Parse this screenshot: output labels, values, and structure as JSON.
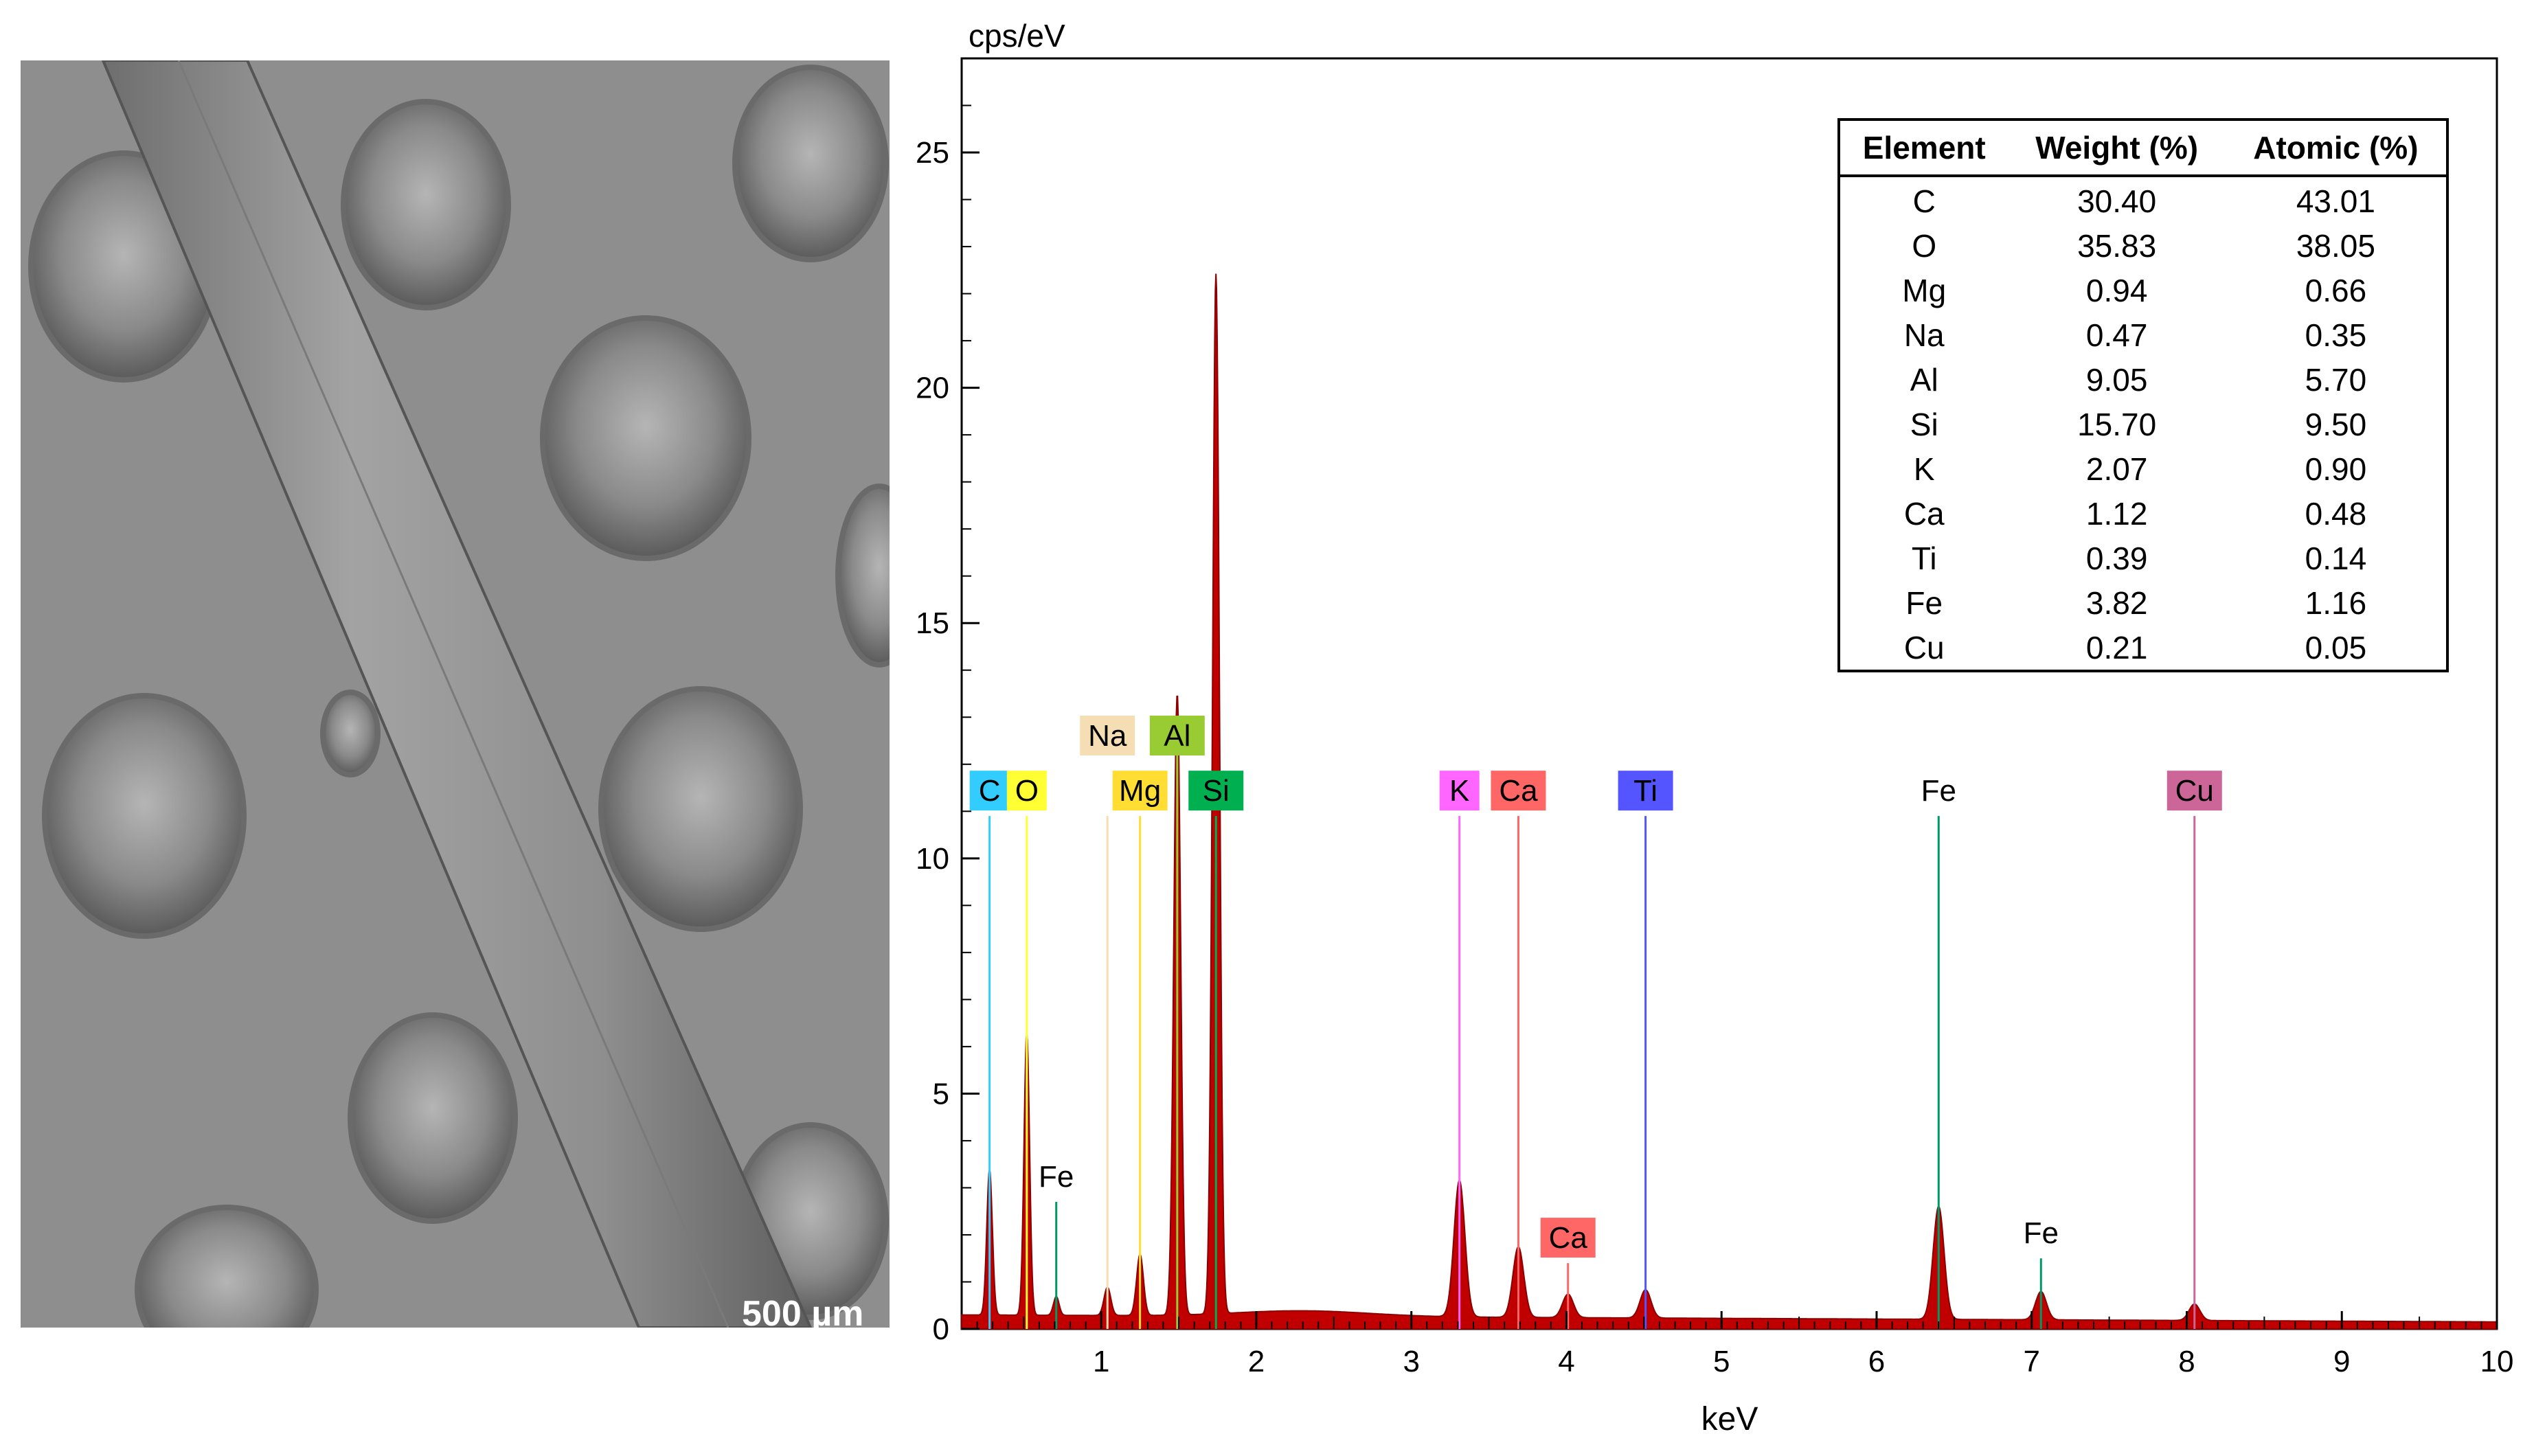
{
  "micrograph": {
    "scale_label": "500 µm"
  },
  "table": {
    "headers": [
      "Element",
      "Weight (%)",
      "Atomic (%)"
    ],
    "rows": [
      [
        "C",
        "30.40",
        "43.01"
      ],
      [
        "O",
        "35.83",
        "38.05"
      ],
      [
        "Mg",
        "0.94",
        "0.66"
      ],
      [
        "Na",
        "0.47",
        "0.35"
      ],
      [
        "Al",
        "9.05",
        "5.70"
      ],
      [
        "Si",
        "15.70",
        "9.50"
      ],
      [
        "K",
        "2.07",
        "0.90"
      ],
      [
        "Ca",
        "1.12",
        "0.48"
      ],
      [
        "Ti",
        "0.39",
        "0.14"
      ],
      [
        "Fe",
        "3.82",
        "1.16"
      ],
      [
        "Cu",
        "0.21",
        "0.05"
      ]
    ]
  },
  "chart_data": {
    "type": "area",
    "title": "",
    "xlabel": "keV",
    "ylabel": "cps/eV",
    "xlim": [
      0.1,
      10
    ],
    "ylim": [
      0,
      27
    ],
    "x_ticks": [
      1,
      2,
      3,
      4,
      5,
      6,
      7,
      8,
      9,
      10
    ],
    "y_ticks": [
      0,
      5,
      10,
      15,
      20,
      25
    ],
    "fill_color": "#c00000",
    "baseline": 0.3,
    "peaks": [
      {
        "element": "C",
        "energy": 0.28,
        "height": 3.1
      },
      {
        "element": "O",
        "energy": 0.52,
        "height": 6.0
      },
      {
        "element": "Fe",
        "energy": 0.71,
        "height": 0.4
      },
      {
        "element": "Na",
        "energy": 1.04,
        "height": 0.6
      },
      {
        "element": "Mg",
        "energy": 1.25,
        "height": 1.3
      },
      {
        "element": "Al",
        "energy": 1.49,
        "height": 13.2
      },
      {
        "element": "Si",
        "energy": 1.74,
        "height": 22.1
      },
      {
        "element": "K",
        "energy": 3.31,
        "height": 2.9
      },
      {
        "element": "Ca",
        "energy": 3.69,
        "height": 1.5
      },
      {
        "element": "Ca",
        "energy": 4.01,
        "height": 0.5
      },
      {
        "element": "Ti",
        "energy": 4.51,
        "height": 0.6
      },
      {
        "element": "Fe",
        "energy": 6.4,
        "height": 2.4
      },
      {
        "element": "Fe",
        "energy": 7.06,
        "height": 0.6
      },
      {
        "element": "Cu",
        "energy": 8.05,
        "height": 0.35
      }
    ],
    "markers": [
      {
        "label": "C",
        "energy": 0.28,
        "top": 10.9,
        "color": "#33ccff",
        "boxed": true
      },
      {
        "label": "O",
        "energy": 0.52,
        "top": 10.9,
        "color": "#ffff33",
        "boxed": true
      },
      {
        "label": "Fe",
        "energy": 0.71,
        "top": 2.7,
        "color": "#009966",
        "boxed": false
      },
      {
        "label": "Na",
        "energy": 1.04,
        "top": 10.9,
        "color": "#f5deb3",
        "boxed": true,
        "label_row": "upper"
      },
      {
        "label": "Mg",
        "energy": 1.25,
        "top": 10.9,
        "color": "#ffdd33",
        "boxed": true
      },
      {
        "label": "Al",
        "energy": 1.49,
        "top": 12.6,
        "color": "#99cc33",
        "boxed": true,
        "label_row": "upper"
      },
      {
        "label": "Si",
        "energy": 1.74,
        "top": 10.9,
        "color": "#00b050",
        "boxed": true
      },
      {
        "label": "K",
        "energy": 3.31,
        "top": 10.9,
        "color": "#ff66ff",
        "boxed": true
      },
      {
        "label": "Ca",
        "energy": 3.69,
        "top": 10.9,
        "color": "#ff6666",
        "boxed": true
      },
      {
        "label": "Ca",
        "energy": 4.01,
        "top": 1.4,
        "color": "#ff6666",
        "boxed": true,
        "label_row": "low"
      },
      {
        "label": "Ti",
        "energy": 4.51,
        "top": 10.9,
        "color": "#5555ff",
        "boxed": true
      },
      {
        "label": "Fe",
        "energy": 6.4,
        "top": 10.9,
        "color": "#009966",
        "boxed": false
      },
      {
        "label": "Fe",
        "energy": 7.06,
        "top": 1.5,
        "color": "#009966",
        "boxed": false,
        "label_row": "low"
      },
      {
        "label": "Cu",
        "energy": 8.05,
        "top": 10.9,
        "color": "#cc6699",
        "boxed": true
      }
    ]
  }
}
